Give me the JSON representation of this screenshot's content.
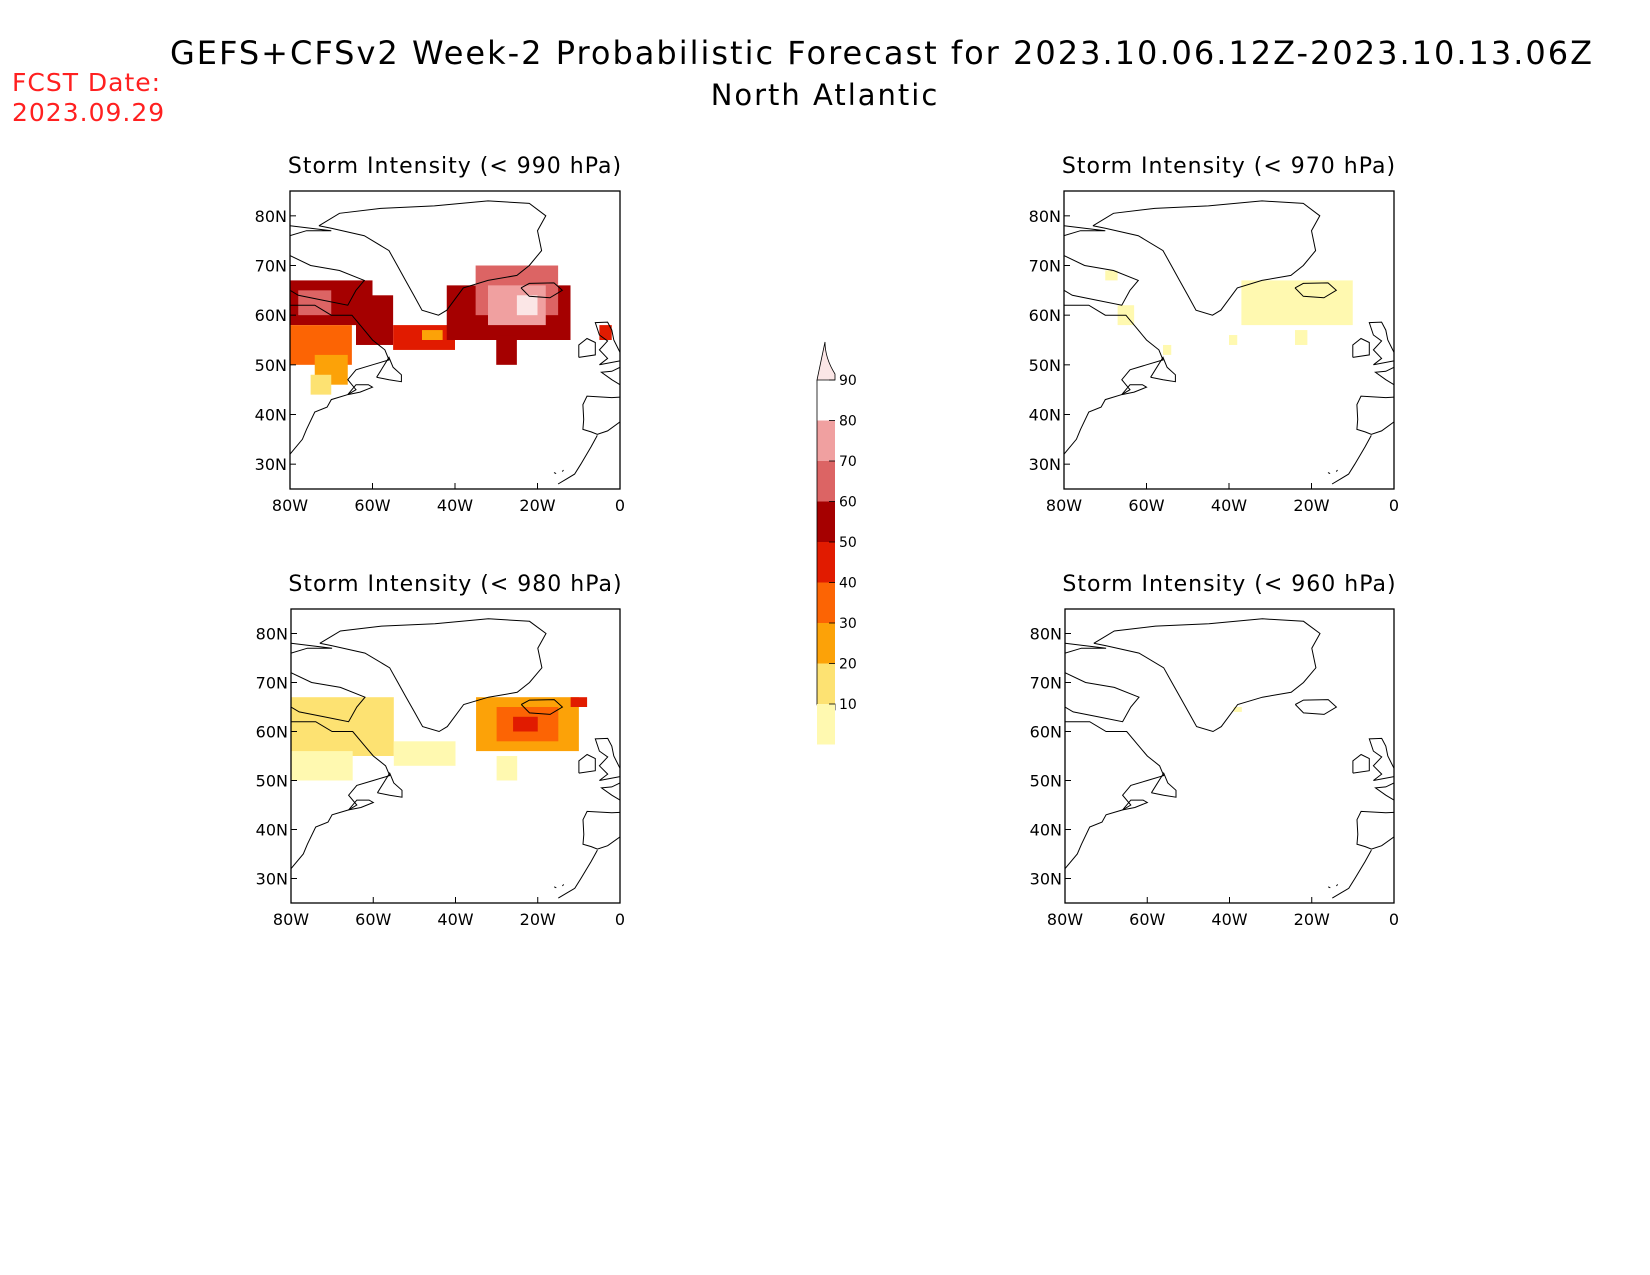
{
  "header": {
    "title": "GEFS+CFSv2 Week-2 Probabilistic Forecast for 2023.10.06.12Z-2023.10.13.06Z",
    "subtitle": "North Atlantic",
    "fcst_label": "FCST Date:",
    "fcst_date": "2023.09.29"
  },
  "map_axes": {
    "lat_labels": [
      "80N",
      "70N",
      "60N",
      "50N",
      "40N",
      "30N"
    ],
    "lat_values": [
      80,
      70,
      60,
      50,
      40,
      30
    ],
    "lon_labels": [
      "80W",
      "60W",
      "40W",
      "20W",
      "0"
    ],
    "lon_values": [
      -80,
      -60,
      -40,
      -20,
      0
    ],
    "lat_range": [
      25,
      85
    ],
    "lon_range": [
      -80,
      0
    ]
  },
  "panels": [
    {
      "title": "Storm Intensity (< 990 hPa)",
      "regions": [
        {
          "lon": [
            -80,
            -60
          ],
          "lat": [
            58,
            67
          ],
          "pct": 65
        },
        {
          "lon": [
            -64,
            -55
          ],
          "lat": [
            54,
            64
          ],
          "pct": 65
        },
        {
          "lon": [
            -78,
            -70
          ],
          "lat": [
            60,
            65
          ],
          "pct": 75
        },
        {
          "lon": [
            -80,
            -65
          ],
          "lat": [
            50,
            58
          ],
          "pct": 45
        },
        {
          "lon": [
            -74,
            -66
          ],
          "lat": [
            46,
            52
          ],
          "pct": 35
        },
        {
          "lon": [
            -75,
            -70
          ],
          "lat": [
            44,
            48
          ],
          "pct": 25
        },
        {
          "lon": [
            -55,
            -40
          ],
          "lat": [
            53,
            58
          ],
          "pct": 55
        },
        {
          "lon": [
            -48,
            -43
          ],
          "lat": [
            55,
            57
          ],
          "pct": 35
        },
        {
          "lon": [
            -42,
            -12
          ],
          "lat": [
            55,
            66
          ],
          "pct": 65
        },
        {
          "lon": [
            -35,
            -15
          ],
          "lat": [
            60,
            70
          ],
          "pct": 70
        },
        {
          "lon": [
            -32,
            -18
          ],
          "lat": [
            58,
            66
          ],
          "pct": 85
        },
        {
          "lon": [
            -25,
            -20
          ],
          "lat": [
            60,
            64
          ],
          "pct": 92
        },
        {
          "lon": [
            -30,
            -25
          ],
          "lat": [
            50,
            56
          ],
          "pct": 65
        },
        {
          "lon": [
            -5,
            -2
          ],
          "lat": [
            55,
            58
          ],
          "pct": 55
        }
      ]
    },
    {
      "title": "Storm Intensity (< 970 hPa)",
      "regions": [
        {
          "lon": [
            -37,
            -10
          ],
          "lat": [
            58,
            67
          ],
          "pct": 15
        },
        {
          "lon": [
            -67,
            -63
          ],
          "lat": [
            58,
            62
          ],
          "pct": 15
        },
        {
          "lon": [
            -56,
            -54
          ],
          "lat": [
            52,
            54
          ],
          "pct": 15
        },
        {
          "lon": [
            -40,
            -38
          ],
          "lat": [
            54,
            56
          ],
          "pct": 15
        },
        {
          "lon": [
            -24,
            -21
          ],
          "lat": [
            54,
            57
          ],
          "pct": 15
        },
        {
          "lon": [
            -70,
            -67
          ],
          "lat": [
            67,
            69
          ],
          "pct": 15
        }
      ]
    },
    {
      "title": "Storm Intensity (< 980 hPa)",
      "regions": [
        {
          "lon": [
            -80,
            -55
          ],
          "lat": [
            55,
            67
          ],
          "pct": 25
        },
        {
          "lon": [
            -80,
            -65
          ],
          "lat": [
            50,
            56
          ],
          "pct": 15
        },
        {
          "lon": [
            -55,
            -40
          ],
          "lat": [
            53,
            58
          ],
          "pct": 15
        },
        {
          "lon": [
            -35,
            -10
          ],
          "lat": [
            56,
            67
          ],
          "pct": 35
        },
        {
          "lon": [
            -30,
            -15
          ],
          "lat": [
            58,
            65
          ],
          "pct": 45
        },
        {
          "lon": [
            -26,
            -20
          ],
          "lat": [
            60,
            63
          ],
          "pct": 55
        },
        {
          "lon": [
            -30,
            -25
          ],
          "lat": [
            50,
            55
          ],
          "pct": 15
        },
        {
          "lon": [
            -12,
            -8
          ],
          "lat": [
            65,
            67
          ],
          "pct": 55
        }
      ]
    },
    {
      "title": "Storm Intensity (< 960 hPa)",
      "regions": [
        {
          "lon": [
            -39,
            -37
          ],
          "lat": [
            64,
            65
          ],
          "pct": 15
        }
      ]
    }
  ],
  "colorbar": {
    "labels": [
      "90",
      "80",
      "70",
      "60",
      "50",
      "40",
      "30",
      "20",
      "10"
    ],
    "levels": [
      10,
      20,
      30,
      40,
      50,
      60,
      70,
      80,
      90
    ],
    "colors": [
      "#ffffff",
      "#fff9b0",
      "#fde272",
      "#fca208",
      "#fc6404",
      "#e11b00",
      "#a50000",
      "#dc6464",
      "#f0a0a0",
      "#fbe6e6"
    ]
  }
}
